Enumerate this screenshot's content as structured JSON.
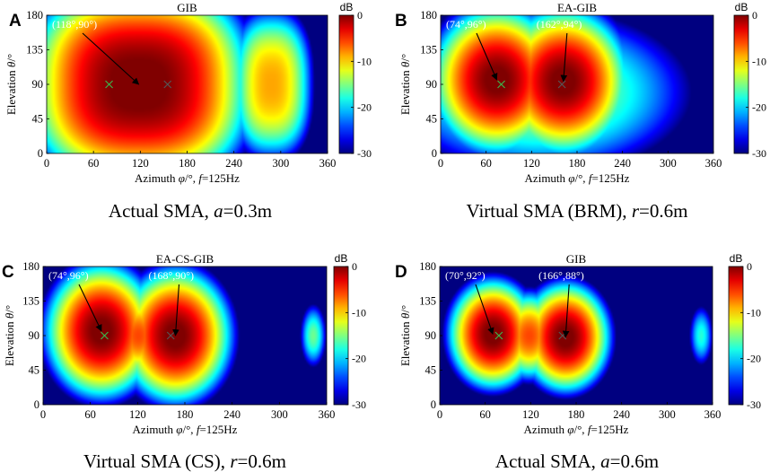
{
  "figure": {
    "colorbar_unit": "dB",
    "colormap": "jet",
    "marker_colors": {
      "true_source": "#3cb44b",
      "estimated_source": "#555555"
    }
  },
  "chart_data": [
    {
      "type": "heatmap",
      "panel_letter": "A",
      "title": "GIB",
      "caption": {
        "prefix": "Actual SMA, ",
        "var": "a",
        "suffix": "=0.3m"
      },
      "xlabel": {
        "prefix": "Azimuth ",
        "var1": "φ",
        "mid": "/°, ",
        "var2": "f",
        "suffix": "=125Hz"
      },
      "ylabel": {
        "prefix": "Elevation ",
        "var": "θ",
        "suffix": "/°"
      },
      "xlim": [
        0,
        360
      ],
      "ylim": [
        0,
        180
      ],
      "xticks": [
        "0",
        "60",
        "120",
        "180",
        "240",
        "300",
        "360"
      ],
      "yticks": [
        "0",
        "45",
        "90",
        "135",
        "180"
      ],
      "colorbar": {
        "range": [
          -30,
          0
        ],
        "ticks": [
          "0",
          "-10",
          "-20",
          "-30"
        ]
      },
      "true_sources": [
        [
          80,
          90
        ],
        [
          155,
          90
        ]
      ],
      "estimated_peaks": [
        {
          "az": 118,
          "el": 90,
          "label": "(118°,90°)"
        }
      ],
      "field_model": "wide"
    },
    {
      "type": "heatmap",
      "panel_letter": "B",
      "title": "EA-GIB",
      "caption": {
        "prefix": "Virtual SMA (BRM), ",
        "var": "r",
        "suffix": "=0.6m"
      },
      "xlabel": {
        "prefix": "Azimuth ",
        "var1": "φ",
        "mid": "/°, ",
        "var2": "f",
        "suffix": "=125Hz"
      },
      "ylabel": {
        "prefix": "Elevation ",
        "var": "θ",
        "suffix": "/°"
      },
      "xlim": [
        0,
        360
      ],
      "ylim": [
        0,
        180
      ],
      "xticks": [
        "0",
        "60",
        "120",
        "180",
        "240",
        "300",
        "360"
      ],
      "yticks": [
        "0",
        "45",
        "90",
        "135",
        "180"
      ],
      "colorbar": {
        "range": [
          -30,
          0
        ],
        "ticks": [
          "0",
          "-10",
          "-20",
          "-30"
        ]
      },
      "true_sources": [
        [
          80,
          90
        ],
        [
          160,
          90
        ]
      ],
      "estimated_peaks": [
        {
          "az": 74,
          "el": 96,
          "label": "(74°,96°)"
        },
        {
          "az": 162,
          "el": 94,
          "label": "(162°,94°)"
        }
      ],
      "field_model": "twin_wide"
    },
    {
      "type": "heatmap",
      "panel_letter": "C",
      "title": "EA-CS-GIB",
      "caption": {
        "prefix": "Virtual SMA (CS), ",
        "var": "r",
        "suffix": "=0.6m"
      },
      "xlabel": {
        "prefix": "Azimuth ",
        "var1": "φ",
        "mid": "/°, ",
        "var2": "f",
        "suffix": "=125Hz"
      },
      "ylabel": {
        "prefix": "Elevation ",
        "var": "θ",
        "suffix": "/°"
      },
      "xlim": [
        0,
        360
      ],
      "ylim": [
        0,
        180
      ],
      "xticks": [
        "0",
        "60",
        "120",
        "180",
        "240",
        "300",
        "360"
      ],
      "yticks": [
        "0",
        "45",
        "90",
        "135",
        "180"
      ],
      "colorbar": {
        "range": [
          -30,
          0
        ],
        "ticks": [
          "0",
          "-10",
          "-20",
          "-30"
        ]
      },
      "true_sources": [
        [
          78,
          90
        ],
        [
          162,
          90
        ]
      ],
      "estimated_peaks": [
        {
          "az": 74,
          "el": 96,
          "label": "(74°,96°)"
        },
        {
          "az": 168,
          "el": 90,
          "label": "(168°,90°)"
        }
      ],
      "field_model": "twin_mid"
    },
    {
      "type": "heatmap",
      "panel_letter": "D",
      "title": "GIB",
      "caption": {
        "prefix": "Actual SMA, ",
        "var": "a",
        "suffix": "=0.6m"
      },
      "xlabel": {
        "prefix": "Azimuth ",
        "var1": "φ",
        "mid": "/°, ",
        "var2": "f",
        "suffix": "=125Hz"
      },
      "ylabel": {
        "prefix": "Elevation ",
        "var": "θ",
        "suffix": "/°"
      },
      "xlim": [
        0,
        360
      ],
      "ylim": [
        0,
        180
      ],
      "xticks": [
        "0",
        "60",
        "120",
        "180",
        "240",
        "300",
        "360"
      ],
      "yticks": [
        "0",
        "45",
        "90",
        "135",
        "180"
      ],
      "colorbar": {
        "range": [
          -30,
          0
        ],
        "ticks": [
          "0",
          "-10",
          "-20",
          "-30"
        ]
      },
      "true_sources": [
        [
          78,
          90
        ],
        [
          162,
          90
        ]
      ],
      "estimated_peaks": [
        {
          "az": 70,
          "el": 92,
          "label": "(70°,92°)"
        },
        {
          "az": 166,
          "el": 88,
          "label": "(166°,88°)"
        }
      ],
      "field_model": "twin_narrow"
    }
  ]
}
